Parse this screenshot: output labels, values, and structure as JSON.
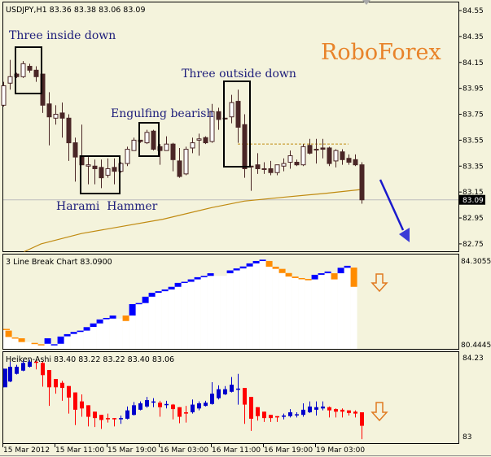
{
  "main": {
    "header": "USDJPY,H1  83.36 83.38 83.06 83.09",
    "brand": "RoboForex",
    "patterns": {
      "three_inside_down": "Three inside down",
      "three_outside_down": "Three outside down",
      "engulfing_bearish": "Engulfing bearish",
      "harami_hammer": "Harami  Hammer"
    },
    "price_labels": [
      "84.55",
      "84.35",
      "84.15",
      "83.95",
      "83.75",
      "83.55",
      "83.35",
      "83.15",
      "82.95",
      "82.75"
    ],
    "current_price": "83.09",
    "resistance_level": 83.52,
    "colors": {
      "bear": "#4a2626",
      "bull": "#ffffff",
      "ma": "#c08a10",
      "arrow": "#1a1acc",
      "current_line": "#bdbdbd"
    },
    "candles": [
      [
        83.82,
        84.0,
        83.81,
        83.97
      ],
      [
        83.99,
        84.17,
        83.94,
        84.04
      ],
      [
        84.06,
        84.07,
        84.03,
        84.04
      ],
      [
        84.04,
        84.16,
        84.03,
        84.14
      ],
      [
        84.12,
        84.14,
        84.07,
        84.09
      ],
      [
        84.09,
        84.12,
        84.0,
        84.04
      ],
      [
        84.06,
        84.06,
        83.76,
        83.82
      ],
      [
        83.83,
        83.92,
        83.51,
        83.73
      ],
      [
        83.72,
        83.82,
        83.67,
        83.75
      ],
      [
        83.76,
        83.84,
        83.57,
        83.72
      ],
      [
        83.72,
        83.75,
        83.39,
        83.53
      ],
      [
        83.53,
        83.57,
        83.23,
        83.42
      ],
      [
        83.43,
        83.67,
        83.36,
        83.36
      ],
      [
        83.35,
        83.42,
        83.21,
        83.36
      ],
      [
        83.35,
        83.4,
        83.21,
        83.33
      ],
      [
        83.34,
        83.4,
        83.18,
        83.26
      ],
      [
        83.28,
        83.41,
        83.26,
        83.33
      ],
      [
        83.34,
        83.41,
        83.21,
        83.31
      ],
      [
        83.31,
        83.38,
        83.3,
        83.37
      ],
      [
        83.37,
        83.5,
        83.35,
        83.48
      ],
      [
        83.47,
        83.57,
        83.47,
        83.55
      ],
      [
        83.55,
        83.55,
        83.53,
        83.54
      ],
      [
        83.53,
        83.63,
        83.52,
        83.61
      ],
      [
        83.62,
        83.63,
        83.47,
        83.48
      ],
      [
        83.5,
        83.52,
        83.36,
        83.47
      ],
      [
        83.47,
        83.58,
        83.47,
        83.52
      ],
      [
        83.52,
        83.53,
        83.31,
        83.4
      ],
      [
        83.39,
        83.49,
        83.26,
        83.27
      ],
      [
        83.29,
        83.5,
        83.28,
        83.48
      ],
      [
        83.49,
        83.57,
        83.45,
        83.53
      ],
      [
        83.55,
        83.6,
        83.43,
        83.56
      ],
      [
        83.57,
        83.58,
        83.52,
        83.53
      ],
      [
        83.54,
        83.83,
        83.53,
        83.77
      ],
      [
        83.77,
        83.8,
        83.63,
        83.71
      ],
      [
        83.72,
        83.72,
        83.71,
        83.72
      ],
      [
        83.73,
        83.9,
        83.68,
        83.84
      ],
      [
        83.85,
        83.94,
        83.53,
        83.65
      ],
      [
        83.67,
        83.75,
        83.26,
        83.33
      ],
      [
        83.35,
        83.35,
        83.16,
        83.35
      ],
      [
        83.36,
        83.45,
        83.29,
        83.33
      ],
      [
        83.33,
        83.38,
        83.29,
        83.33
      ],
      [
        83.33,
        83.39,
        83.28,
        83.3
      ],
      [
        83.3,
        83.36,
        83.28,
        83.36
      ],
      [
        83.35,
        83.41,
        83.31,
        83.37
      ],
      [
        83.38,
        83.47,
        83.33,
        83.43
      ],
      [
        83.38,
        83.4,
        83.35,
        83.36
      ],
      [
        83.36,
        83.52,
        83.35,
        83.5
      ],
      [
        83.51,
        83.56,
        83.44,
        83.45
      ],
      [
        83.48,
        83.56,
        83.37,
        83.48
      ],
      [
        83.49,
        83.56,
        83.41,
        83.48
      ],
      [
        83.49,
        83.5,
        83.35,
        83.37
      ],
      [
        83.39,
        83.48,
        83.34,
        83.47
      ],
      [
        83.46,
        83.48,
        83.36,
        83.4
      ],
      [
        83.41,
        83.44,
        83.36,
        83.38
      ],
      [
        83.4,
        83.44,
        83.35,
        83.36
      ],
      [
        83.36,
        83.38,
        83.06,
        83.09
      ]
    ],
    "ma": [
      [
        3.2,
        82.69
      ],
      [
        5.8,
        82.75
      ],
      [
        12,
        82.83
      ],
      [
        24.5,
        82.94
      ],
      [
        32,
        83.03
      ],
      [
        37,
        83.08
      ],
      [
        43,
        83.11
      ],
      [
        49.5,
        83.14
      ],
      [
        55,
        83.17
      ]
    ]
  },
  "line_break": {
    "title": "3 Line Break Chart 83.0900",
    "axis_top": "84.3055",
    "axis_bottom": "80.4445",
    "colors": {
      "up": "#0000ff",
      "down": "#ff8c00",
      "signal_arrow": "#e07a20"
    },
    "bricks": [
      [
        81.17,
        81.17,
        "down"
      ],
      [
        81.09,
        80.8,
        "down"
      ],
      [
        80.78,
        80.78,
        "down"
      ],
      [
        80.74,
        80.57,
        "down"
      ],
      null,
      [
        80.53,
        80.53,
        "down"
      ],
      [
        80.47,
        80.47,
        "down"
      ],
      [
        80.49,
        80.74,
        "up"
      ],
      [
        80.47,
        80.47,
        "up"
      ],
      [
        80.49,
        80.82,
        "up"
      ],
      [
        80.83,
        80.93,
        "up"
      ],
      [
        80.94,
        81.03,
        "up"
      ],
      [
        81.03,
        81.09,
        "up"
      ],
      [
        81.09,
        81.25,
        "up"
      ],
      [
        81.26,
        81.42,
        "up"
      ],
      [
        81.42,
        81.6,
        "up"
      ],
      [
        81.61,
        81.67,
        "up"
      ],
      [
        81.64,
        81.78,
        "up"
      ],
      null,
      [
        81.78,
        81.53,
        "down"
      ],
      [
        81.78,
        82.3,
        "up"
      ],
      [
        82.3,
        82.35,
        "up"
      ],
      [
        82.35,
        82.64,
        "up"
      ],
      [
        82.64,
        82.82,
        "up"
      ],
      [
        82.82,
        82.89,
        "up"
      ],
      [
        82.89,
        82.97,
        "up"
      ],
      [
        82.97,
        83.09,
        "up"
      ],
      [
        83.09,
        83.27,
        "up"
      ],
      [
        83.27,
        83.32,
        "up"
      ],
      [
        83.32,
        83.43,
        "up"
      ],
      [
        83.43,
        83.53,
        "up"
      ],
      [
        83.53,
        83.59,
        "up"
      ],
      [
        83.59,
        83.71,
        "up"
      ],
      null,
      null,
      [
        83.71,
        83.84,
        "up"
      ],
      [
        83.84,
        83.93,
        "up"
      ],
      [
        83.93,
        84.02,
        "up"
      ],
      [
        84.02,
        84.16,
        "up"
      ],
      [
        84.16,
        84.27,
        "up"
      ],
      [
        84.27,
        84.33,
        "up"
      ],
      [
        84.27,
        84.01,
        "down"
      ],
      [
        84.01,
        83.91,
        "down"
      ],
      [
        83.91,
        83.72,
        "down"
      ],
      [
        83.72,
        83.56,
        "down"
      ],
      [
        83.56,
        83.49,
        "down"
      ],
      [
        83.49,
        83.44,
        "down"
      ],
      [
        83.45,
        83.39,
        "down"
      ],
      [
        83.43,
        83.64,
        "up"
      ],
      [
        83.64,
        83.71,
        "up"
      ],
      [
        83.71,
        83.79,
        "up"
      ],
      [
        83.71,
        83.43,
        "down"
      ],
      [
        83.71,
        83.96,
        "up"
      ],
      [
        83.96,
        84.05,
        "up"
      ],
      [
        83.97,
        83.09,
        "down"
      ]
    ]
  },
  "heiken_ashi": {
    "title": "Heiken-Ashi 83.40 83.22 83.22 83.40 83.06",
    "axis_top": "84.23",
    "axis_bottom": "83",
    "colors": {
      "up": "#0000cc",
      "down": "#ff0000",
      "signal_arrow": "#e07a20"
    },
    "candles": [
      [
        83.77,
        84.06,
        83.77,
        84.06
      ],
      [
        83.86,
        84.17,
        83.85,
        84.09
      ],
      [
        83.98,
        84.12,
        83.97,
        84.09
      ],
      [
        84.03,
        84.2,
        84.02,
        84.15
      ],
      [
        84.09,
        84.2,
        84.08,
        84.17
      ],
      [
        84.17,
        84.19,
        84.05,
        84.16
      ],
      [
        84.15,
        84.17,
        83.78,
        83.96
      ],
      [
        84.04,
        84.04,
        83.48,
        83.77
      ],
      [
        83.9,
        83.9,
        83.67,
        83.77
      ],
      [
        83.84,
        83.87,
        83.56,
        83.76
      ],
      [
        83.79,
        83.79,
        83.36,
        83.61
      ],
      [
        83.69,
        83.69,
        83.18,
        83.42
      ],
      [
        83.55,
        83.66,
        83.31,
        83.44
      ],
      [
        83.49,
        83.49,
        83.16,
        83.31
      ],
      [
        83.39,
        83.39,
        83.15,
        83.29
      ],
      [
        83.34,
        83.34,
        83.12,
        83.26
      ],
      [
        83.29,
        83.36,
        83.22,
        83.28
      ],
      [
        83.29,
        83.29,
        83.16,
        83.27
      ],
      [
        83.28,
        83.33,
        83.2,
        83.29
      ],
      [
        83.28,
        83.47,
        83.27,
        83.41
      ],
      [
        83.34,
        83.54,
        83.33,
        83.49
      ],
      [
        83.42,
        83.55,
        83.41,
        83.52
      ],
      [
        83.47,
        83.62,
        83.45,
        83.57
      ],
      [
        83.53,
        83.6,
        83.46,
        83.55
      ],
      [
        83.53,
        83.56,
        83.31,
        83.46
      ],
      [
        83.5,
        83.56,
        83.44,
        83.51
      ],
      [
        83.5,
        83.51,
        83.27,
        83.43
      ],
      [
        83.46,
        83.46,
        83.21,
        83.31
      ],
      [
        83.38,
        83.48,
        83.22,
        83.36
      ],
      [
        83.38,
        83.58,
        83.36,
        83.5
      ],
      [
        83.44,
        83.55,
        83.41,
        83.52
      ],
      [
        83.48,
        83.56,
        83.47,
        83.53
      ],
      [
        83.51,
        83.85,
        83.5,
        83.67
      ],
      [
        83.6,
        83.8,
        83.58,
        83.74
      ],
      [
        83.66,
        83.79,
        83.65,
        83.74
      ],
      [
        83.7,
        83.93,
        83.69,
        83.81
      ],
      [
        83.74,
        83.98,
        83.5,
        83.75
      ],
      [
        83.76,
        83.76,
        83.2,
        83.5
      ],
      [
        83.62,
        83.62,
        83.09,
        83.28
      ],
      [
        83.46,
        83.46,
        83.25,
        83.32
      ],
      [
        83.39,
        83.39,
        83.23,
        83.29
      ],
      [
        83.34,
        83.34,
        83.23,
        83.29
      ],
      [
        83.32,
        83.32,
        83.23,
        83.3
      ],
      [
        83.31,
        83.36,
        83.27,
        83.33
      ],
      [
        83.32,
        83.43,
        83.3,
        83.38
      ],
      [
        83.34,
        83.38,
        83.3,
        83.35
      ],
      [
        83.34,
        83.52,
        83.31,
        83.42
      ],
      [
        83.38,
        83.55,
        83.37,
        83.47
      ],
      [
        83.42,
        83.55,
        83.33,
        83.46
      ],
      [
        83.44,
        83.55,
        83.41,
        83.47
      ],
      [
        83.46,
        83.47,
        83.3,
        83.41
      ],
      [
        83.43,
        83.44,
        83.3,
        83.39
      ],
      [
        83.42,
        83.44,
        83.3,
        83.39
      ],
      [
        83.41,
        83.41,
        83.33,
        83.37
      ],
      [
        83.39,
        83.41,
        83.3,
        83.36
      ],
      [
        83.38,
        83.38,
        82.96,
        83.17
      ]
    ]
  },
  "time_axis": [
    "15 Mar 2012",
    "15 Mar 11:00",
    "15 Mar 19:00",
    "16 Mar 03:00",
    "16 Mar 11:00",
    "16 Mar 19:00",
    "19 Mar 03:00"
  ]
}
